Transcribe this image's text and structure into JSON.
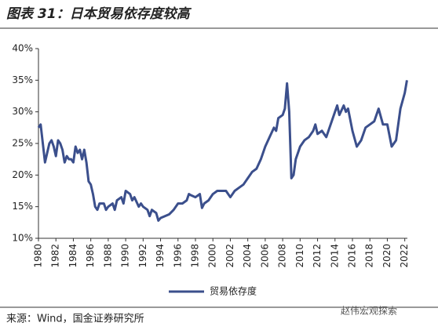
{
  "chart_data": {
    "type": "line",
    "title": "图表 31：日本贸易依存度较高",
    "x": [
      1980,
      1980.25,
      1980.5,
      1980.75,
      1981,
      1981.25,
      1981.5,
      1981.75,
      1982,
      1982.25,
      1982.5,
      1982.75,
      1983,
      1983.25,
      1983.5,
      1983.75,
      1984,
      1984.25,
      1984.5,
      1984.75,
      1985,
      1985.25,
      1985.5,
      1985.75,
      1986,
      1986.25,
      1986.5,
      1986.75,
      1987,
      1987.5,
      1987.75,
      1988,
      1988.5,
      1988.75,
      1989,
      1989.5,
      1989.75,
      1990,
      1990.5,
      1990.75,
      1991,
      1991.5,
      1991.75,
      1992,
      1992.5,
      1992.75,
      1993,
      1993.5,
      1993.75,
      1994,
      1994.5,
      1995,
      1995.5,
      1996,
      1996.5,
      1997,
      1997.25,
      1997.5,
      1998,
      1998.5,
      1998.75,
      1999,
      1999.5,
      2000,
      2000.5,
      2001,
      2001.5,
      2002,
      2002.5,
      2003,
      2003.5,
      2004,
      2004.5,
      2005,
      2005.5,
      2006,
      2006.5,
      2007,
      2007.25,
      2007.5,
      2008,
      2008.25,
      2008.5,
      2008.75,
      2009,
      2009.25,
      2009.5,
      2010,
      2010.5,
      2011,
      2011.5,
      2011.75,
      2012,
      2012.5,
      2013,
      2013.5,
      2014,
      2014.25,
      2014.5,
      2015,
      2015.25,
      2015.5,
      2016,
      2016.5,
      2017,
      2017.5,
      2018,
      2018.5,
      2019,
      2019.5,
      2020,
      2020.5,
      2021,
      2021.5,
      2022,
      2022.25
    ],
    "series": [
      {
        "name": "贸易依存度",
        "color": "#3b4f8c",
        "values": [
          27.5,
          28,
          25,
          22,
          23.5,
          25,
          25.5,
          24.5,
          23,
          25.5,
          25,
          24,
          22,
          23,
          22.5,
          22.5,
          22,
          24.5,
          23.5,
          24,
          22.5,
          24,
          22,
          19,
          18.5,
          17,
          15,
          14.5,
          15.5,
          15.5,
          14.5,
          15,
          15.5,
          14.5,
          16,
          16.5,
          15.5,
          17.5,
          17,
          16,
          16.5,
          15,
          15.5,
          15,
          14.5,
          13.5,
          14.5,
          14,
          12.8,
          13.2,
          13.5,
          13.8,
          14.5,
          15.5,
          15.5,
          16,
          17,
          16.8,
          16.5,
          17,
          14.8,
          15.5,
          16,
          17,
          17.5,
          17.5,
          17.5,
          16.5,
          17.5,
          18,
          18.5,
          19.5,
          20.5,
          21,
          22.5,
          24.5,
          26,
          27.5,
          27,
          29,
          29.5,
          30.5,
          34.5,
          30,
          19.5,
          20,
          22.5,
          24.5,
          25.5,
          26,
          27,
          28,
          26.5,
          27,
          26,
          28,
          30,
          31,
          29.5,
          31,
          30,
          30.5,
          27,
          24.5,
          25.5,
          27.5,
          28,
          28.5,
          30.5,
          28,
          28,
          24.5,
          25.5,
          30.5,
          33,
          35
        ]
      }
    ],
    "xlim": [
      1980,
      2022.3
    ],
    "xticks": [
      1980,
      1982,
      1984,
      1986,
      1988,
      1990,
      1992,
      1994,
      1996,
      1998,
      2000,
      2002,
      2004,
      2006,
      2008,
      2010,
      2012,
      2014,
      2016,
      2018,
      2020,
      2022
    ],
    "ylim": [
      10,
      40
    ],
    "yticks": [
      {
        "value": 10,
        "label": "10%"
      },
      {
        "value": 15,
        "label": "15%"
      },
      {
        "value": 20,
        "label": "20%"
      },
      {
        "value": 25,
        "label": "25%"
      },
      {
        "value": 30,
        "label": "30%"
      },
      {
        "value": 35,
        "label": "35%"
      },
      {
        "value": 40,
        "label": "40%"
      }
    ]
  },
  "footer": {
    "source": "来源：Wind，国金证券研究所",
    "watermark": "赵伟宏观探索"
  }
}
